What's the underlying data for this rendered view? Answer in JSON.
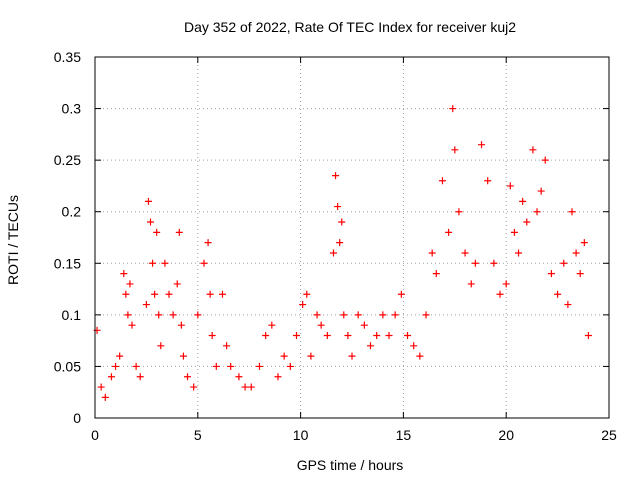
{
  "chart_data": {
    "type": "scatter",
    "title": "Day 352 of 2022, Rate Of TEC Index for receiver kuj2",
    "xlabel": "GPS time / hours",
    "ylabel": "ROTI / TECUs",
    "xlim": [
      0,
      25
    ],
    "ylim": [
      0,
      0.35
    ],
    "x_ticks": [
      "0",
      "5",
      "10",
      "15",
      "20",
      "25"
    ],
    "y_ticks": [
      "0",
      "0.05",
      "0.1",
      "0.15",
      "0.2",
      "0.25",
      "0.3",
      "0.35"
    ],
    "x_tick_values": [
      0,
      5,
      10,
      15,
      20,
      25
    ],
    "y_tick_values": [
      0,
      0.05,
      0.1,
      0.15,
      0.2,
      0.25,
      0.3,
      0.35
    ],
    "grid": true,
    "marker": "+",
    "series_color": "#ff0000",
    "series": [
      {
        "x": [
          0.1,
          0.3,
          0.5,
          0.8,
          1.0,
          1.2,
          1.4,
          1.5,
          1.6,
          1.7,
          1.8,
          2.0,
          2.2,
          2.5,
          2.6,
          2.7,
          2.8,
          2.9,
          3.0,
          3.1,
          3.2,
          3.4,
          3.6,
          3.8,
          4.0,
          4.1,
          4.2,
          4.3,
          4.5,
          4.8,
          5.0,
          5.3,
          5.5,
          5.6,
          5.7,
          5.9,
          6.2,
          6.4,
          6.6,
          7.0,
          7.3,
          7.6,
          8.0,
          8.3,
          8.6,
          8.9,
          9.2,
          9.5,
          9.8,
          10.1,
          10.3,
          10.5,
          10.8,
          11.0,
          11.3,
          11.6,
          11.7,
          11.8,
          11.9,
          12.0,
          12.1,
          12.3,
          12.5,
          12.8,
          13.1,
          13.4,
          13.7,
          14.0,
          14.3,
          14.6,
          14.9,
          15.2,
          15.5,
          15.8,
          16.1,
          16.4,
          16.6,
          16.9,
          17.2,
          17.4,
          17.5,
          17.7,
          18.0,
          18.3,
          18.5,
          18.8,
          19.1,
          19.4,
          19.7,
          20.0,
          20.2,
          20.4,
          20.6,
          20.8,
          21.0,
          21.3,
          21.5,
          21.7,
          21.9,
          22.2,
          22.5,
          22.8,
          23.0,
          23.2,
          23.4,
          23.6,
          23.8,
          24.0
        ],
        "y": [
          0.085,
          0.03,
          0.02,
          0.04,
          0.05,
          0.06,
          0.14,
          0.12,
          0.1,
          0.13,
          0.09,
          0.05,
          0.04,
          0.11,
          0.21,
          0.19,
          0.15,
          0.12,
          0.18,
          0.1,
          0.07,
          0.15,
          0.12,
          0.1,
          0.13,
          0.18,
          0.09,
          0.06,
          0.04,
          0.03,
          0.1,
          0.15,
          0.17,
          0.12,
          0.08,
          0.05,
          0.12,
          0.07,
          0.05,
          0.04,
          0.03,
          0.03,
          0.05,
          0.08,
          0.09,
          0.04,
          0.06,
          0.05,
          0.08,
          0.11,
          0.12,
          0.06,
          0.1,
          0.09,
          0.08,
          0.16,
          0.235,
          0.205,
          0.17,
          0.19,
          0.1,
          0.08,
          0.06,
          0.1,
          0.09,
          0.07,
          0.08,
          0.1,
          0.08,
          0.1,
          0.12,
          0.08,
          0.07,
          0.06,
          0.1,
          0.16,
          0.14,
          0.23,
          0.18,
          0.3,
          0.26,
          0.2,
          0.16,
          0.13,
          0.15,
          0.265,
          0.23,
          0.15,
          0.12,
          0.13,
          0.225,
          0.18,
          0.16,
          0.21,
          0.19,
          0.26,
          0.2,
          0.22,
          0.25,
          0.14,
          0.12,
          0.15,
          0.11,
          0.2,
          0.16,
          0.14,
          0.17,
          0.08
        ]
      }
    ]
  }
}
